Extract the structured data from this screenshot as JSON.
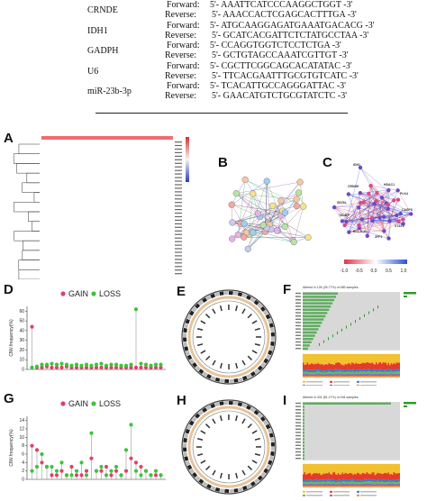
{
  "primer_table": {
    "rows": [
      {
        "gene": "CRNDE",
        "forward_label": "Forward:",
        "forward_seq": "5'- AAATTCATCCCAAGGCTGGT -3'",
        "reverse_label": "Reverse:",
        "reverse_seq": "5'- AAACCACTCGAGCACTTTGA -3'"
      },
      {
        "gene": "IDH1",
        "forward_label": "Forward:",
        "forward_seq": "5'- ATGCAAGGAGATGAAATGACACG -3'",
        "reverse_label": "Reverse:",
        "reverse_seq": "5'- GCATCACGATTCTCTATGCCTAA -3'"
      },
      {
        "gene": "GADPH",
        "forward_label": "Forward:",
        "forward_seq": "5'- CCAGGTGGTCTCCTCTGA -3'",
        "reverse_label": "Reverse:",
        "reverse_seq": "5'- GCTGTAGCCAAATCGTTGT -3'"
      },
      {
        "gene": "U6",
        "forward_label": "Forward:",
        "forward_seq": "5'- CGCTTCGGCAGCACATATAC -3'",
        "reverse_label": "Reverse:",
        "reverse_seq": "5'- TTCACGAATTTGCGTGTCATC -3'"
      },
      {
        "gene": "miR-23b-3p",
        "forward_label": "Forward:",
        "forward_seq": "5'- TCACATTGCCAGGGATTAC -3'",
        "reverse_label": "Reverse:",
        "reverse_seq": "5'- GAACATGTCTGCGTATCTC -3'"
      }
    ]
  },
  "panels": {
    "A": "A",
    "B": "B",
    "C": "C",
    "D": "D",
    "E": "E",
    "F": "F",
    "G": "G",
    "H": "H",
    "I": "I"
  },
  "colors": {
    "gain": "#e0406a",
    "loss": "#3cc43c",
    "heat_high": "#d7302f",
    "heat_low": "#2b3bbd",
    "heat_mid": "#f5f5f5"
  },
  "legend_C": {
    "ticks": [
      "-1.0",
      "-0.5",
      "0.0",
      "0.5",
      "1.0"
    ]
  },
  "panel_D": {
    "legend_gain": "GAIN",
    "legend_loss": "LOSS",
    "ylabel": "CNV.frequency(%)",
    "yticks": [
      "0",
      "10",
      "20",
      "30",
      "40",
      "50",
      "60"
    ]
  },
  "panel_G": {
    "legend_gain": "GAIN",
    "legend_loss": "LOSS",
    "ylabel": "CNV.frequency(%)",
    "yticks": [
      "0",
      "2",
      "4",
      "6",
      "8",
      "10",
      "12",
      "14"
    ]
  },
  "panel_F": {
    "header": "Altered in 126 (25.77%) of 489 samples."
  },
  "panel_I": {
    "header": "Altered in 401 (81.17%) of 494 samples."
  },
  "panel_C": {
    "node_labels": [
      "IDH1",
      "CRNDE",
      "SEZ6L",
      "TADBP",
      "BCL2L11",
      "ZFP1",
      "STAT6",
      "CASP8",
      "PLK4",
      "HDAC1"
    ]
  }
}
